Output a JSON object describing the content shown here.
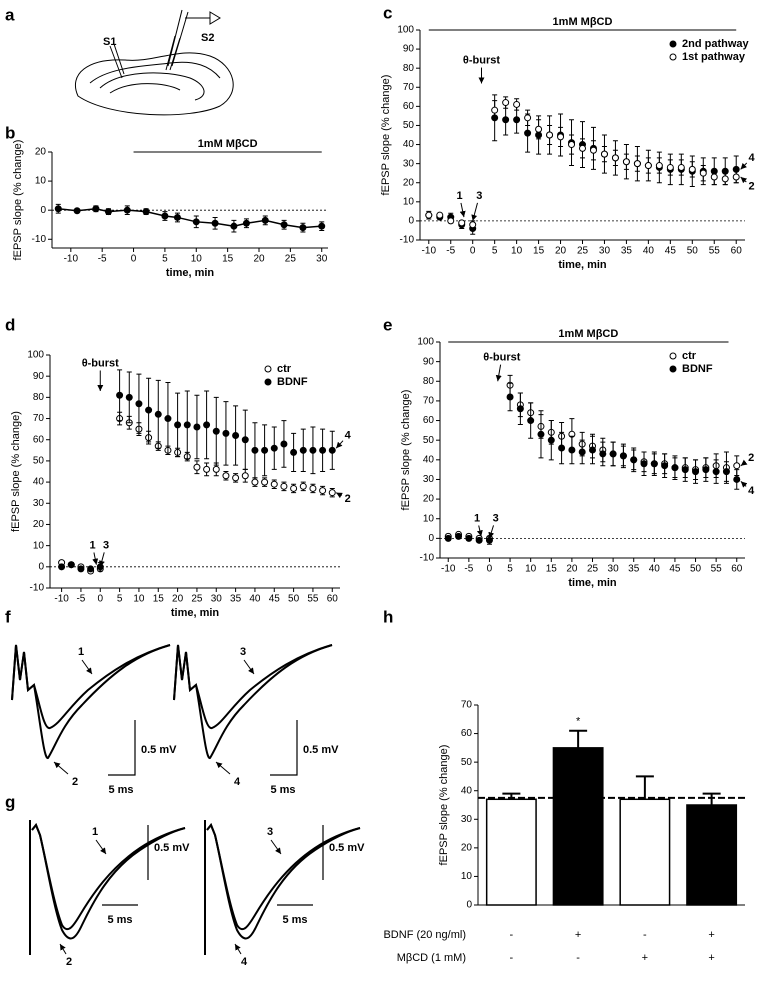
{
  "figure": {
    "panel_labels": [
      "a",
      "b",
      "c",
      "d",
      "e",
      "f",
      "g",
      "h"
    ],
    "panel_a": {
      "labels": [
        "S1",
        "S2"
      ]
    },
    "traces": [
      {
        "labels": [
          "1",
          "2"
        ],
        "scale_y": "0.5 mV",
        "scale_x": "5 ms"
      },
      {
        "labels": [
          "3",
          "4"
        ],
        "scale_y": "0.5 mV",
        "scale_x": "5 ms"
      },
      {
        "labels": [
          "1",
          "2"
        ],
        "scale_y": "0.5 mV",
        "scale_x": "5 ms"
      },
      {
        "labels": [
          "3",
          "4"
        ],
        "scale_y": "0.5 mV",
        "scale_x": "5 ms"
      }
    ]
  },
  "chart_data": [
    {
      "type": "line",
      "x": [
        -12,
        -9,
        -6,
        -4,
        -1,
        2,
        5,
        7,
        10,
        13,
        16,
        18,
        21,
        24,
        27,
        30
      ],
      "series": [
        {
          "color": "#000000",
          "marker": "filled",
          "values": [
            0.5,
            -0.2,
            0.5,
            -0.5,
            0,
            -0.5,
            -2,
            -2.5,
            -4,
            -4.5,
            -5.5,
            -4.5,
            -3.5,
            -5,
            -6,
            -5.5
          ],
          "errors": [
            1.5,
            0.5,
            1,
            1,
            1.5,
            1,
            1.5,
            1.5,
            2,
            2,
            2,
            1.5,
            1.5,
            1.5,
            1.5,
            1.5
          ]
        }
      ],
      "xlim": [
        -13,
        31
      ],
      "xticks": [
        -10,
        -5,
        0,
        5,
        10,
        15,
        20,
        25,
        30
      ],
      "ylim": [
        -13,
        20
      ],
      "yticks": [
        -10,
        0,
        10,
        20
      ],
      "x_label": "time, min",
      "y_label": "fEPSP slope (% change)",
      "reference_line": 0,
      "treatment": {
        "label": "1mM MβCD",
        "xrange": [
          0,
          30
        ]
      }
    },
    {
      "type": "scatter",
      "x": [
        -10,
        -7.5,
        -5,
        -2.5,
        0,
        5,
        7.5,
        10,
        12.5,
        15,
        17.5,
        20,
        22.5,
        25,
        27.5,
        30,
        32.5,
        35,
        37.5,
        40,
        42.5,
        45,
        47.5,
        50,
        52.5,
        55,
        57.5,
        60
      ],
      "series": [
        {
          "name": "2nd pathway",
          "color": "#000000",
          "marker": "filled",
          "values": [
            3,
            2,
            2,
            -2,
            -4,
            54,
            53,
            53,
            46,
            45,
            45,
            45,
            41,
            40,
            38,
            35,
            33,
            31,
            30,
            29,
            28,
            27,
            27,
            26,
            26,
            26,
            26,
            27
          ],
          "errors": [
            2,
            1,
            2,
            2,
            3,
            12,
            8,
            7,
            10,
            10,
            10,
            11,
            12,
            12,
            11,
            10,
            9,
            9,
            9,
            8,
            8,
            8,
            8,
            8,
            7,
            7,
            7,
            7
          ]
        },
        {
          "name": "1st pathway",
          "color": "#000000",
          "marker": "open",
          "values": [
            3,
            3,
            0,
            -1,
            -2,
            58,
            62,
            61,
            54,
            48,
            45,
            44,
            40,
            38,
            37,
            35,
            33,
            31,
            30,
            29,
            29,
            28,
            28,
            27,
            25,
            23,
            22,
            23
          ],
          "errors": [
            1,
            1,
            1,
            1,
            2,
            5,
            3,
            3,
            4,
            5,
            5,
            5,
            5,
            5,
            5,
            4,
            4,
            4,
            4,
            4,
            4,
            4,
            4,
            4,
            4,
            4,
            3,
            3
          ]
        }
      ],
      "xlim": [
        -12,
        62
      ],
      "xticks": [
        -10,
        -5,
        0,
        5,
        10,
        15,
        20,
        25,
        30,
        35,
        40,
        45,
        50,
        55,
        60
      ],
      "ylim": [
        -10,
        100
      ],
      "yticks": [
        -10,
        0,
        10,
        20,
        30,
        40,
        50,
        60,
        70,
        80,
        90,
        100
      ],
      "x_label": "time, min",
      "y_label": "fEPSP slope (% change)",
      "reference_line": 0,
      "legend": "upper right",
      "treatment": {
        "label": "1mM MβCD",
        "xrange": [
          -10,
          60
        ]
      },
      "annotations": [
        {
          "text": "θ-burst",
          "x": 2,
          "y": 84,
          "arrow": [
            2,
            72
          ]
        },
        {
          "text": "1",
          "x": -3,
          "y": 13,
          "arrow": [
            -2,
            2
          ]
        },
        {
          "text": "3",
          "x": 1.5,
          "y": 13,
          "arrow": [
            0,
            0
          ]
        },
        {
          "text": "4",
          "x": 63.5,
          "y": 33,
          "arrow": [
            61,
            27
          ]
        },
        {
          "text": "2",
          "x": 63.5,
          "y": 18,
          "arrow": [
            61,
            23
          ]
        }
      ]
    },
    {
      "type": "scatter",
      "x": [
        -10,
        -7.5,
        -5,
        -2.5,
        0,
        5,
        7.5,
        10,
        12.5,
        15,
        17.5,
        20,
        22.5,
        25,
        27.5,
        30,
        32.5,
        35,
        37.5,
        40,
        42.5,
        45,
        47.5,
        50,
        52.5,
        55,
        57.5,
        60
      ],
      "series": [
        {
          "name": "ctr",
          "color": "#000000",
          "marker": "open",
          "values": [
            2,
            1,
            0,
            -2,
            -1,
            70,
            68,
            65,
            61,
            57,
            55,
            54,
            52,
            47,
            46,
            46,
            43,
            42,
            43,
            40,
            40,
            39,
            38,
            37,
            38,
            37,
            36,
            35
          ],
          "errors": [
            1,
            1,
            1,
            1,
            1,
            3,
            3,
            3,
            3,
            2,
            2,
            2,
            2,
            3,
            3,
            3,
            2,
            2,
            3,
            2,
            2,
            2,
            2,
            2,
            2,
            2,
            2,
            2
          ]
        },
        {
          "name": "BDNF",
          "color": "#000000",
          "marker": "filled",
          "values": [
            0,
            1,
            -1,
            -1,
            0,
            81,
            80,
            77,
            74,
            72,
            70,
            67,
            67,
            66,
            67,
            64,
            63,
            62,
            60,
            55,
            55,
            56,
            58,
            54,
            55,
            55,
            55,
            55
          ],
          "errors": [
            1,
            1,
            1,
            1,
            2,
            12,
            12,
            14,
            15,
            16,
            17,
            15,
            16,
            15,
            16,
            16,
            15,
            14,
            14,
            13,
            12,
            10,
            11,
            9,
            10,
            11,
            10,
            9
          ]
        }
      ],
      "xlim": [
        -13,
        62
      ],
      "xticks": [
        -10,
        -5,
        0,
        5,
        10,
        15,
        20,
        25,
        30,
        35,
        40,
        45,
        50,
        55,
        60
      ],
      "ylim": [
        -10,
        100
      ],
      "yticks": [
        -10,
        0,
        10,
        20,
        30,
        40,
        50,
        60,
        70,
        80,
        90,
        100
      ],
      "x_label": "time, min",
      "y_label": "fEPSP slope (% change)",
      "reference_line": 0,
      "legend": "upper right",
      "annotations": [
        {
          "text": "θ-burst",
          "x": 0,
          "y": 96,
          "arrow": [
            0,
            83
          ]
        },
        {
          "text": "1",
          "x": -2,
          "y": 10,
          "arrow": [
            -1,
            1
          ]
        },
        {
          "text": "3",
          "x": 1.5,
          "y": 10,
          "arrow": [
            0,
            0
          ]
        },
        {
          "text": "4",
          "x": 64,
          "y": 62,
          "arrow": [
            61,
            56
          ]
        },
        {
          "text": "2",
          "x": 64,
          "y": 32,
          "arrow": [
            61,
            35
          ]
        }
      ]
    },
    {
      "type": "scatter",
      "x": [
        -10,
        -7.5,
        -5,
        -2.5,
        0,
        5,
        7.5,
        10,
        12.5,
        15,
        17.5,
        20,
        22.5,
        25,
        27.5,
        30,
        32.5,
        35,
        37.5,
        40,
        42.5,
        45,
        47.5,
        50,
        52.5,
        55,
        57.5,
        60
      ],
      "series": [
        {
          "name": "ctr",
          "color": "#000000",
          "marker": "open",
          "values": [
            1,
            2,
            1,
            0,
            0,
            78,
            68,
            64,
            57,
            54,
            52,
            53,
            48,
            47,
            45,
            43,
            42,
            40,
            39,
            38,
            38,
            36,
            36,
            35,
            36,
            37,
            36,
            37
          ],
          "errors": [
            1,
            1,
            1,
            1,
            1,
            5,
            6,
            5,
            6,
            6,
            7,
            8,
            6,
            6,
            6,
            6,
            5,
            5,
            5,
            5,
            5,
            5,
            5,
            5,
            5,
            6,
            8,
            5
          ]
        },
        {
          "name": "BDNF",
          "color": "#000000",
          "marker": "filled",
          "values": [
            0,
            1,
            0,
            -1,
            -1,
            72,
            66,
            60,
            53,
            50,
            46,
            45,
            44,
            45,
            43,
            43,
            42,
            40,
            38,
            38,
            37,
            36,
            35,
            34,
            35,
            34,
            34,
            30
          ],
          "errors": [
            1,
            1,
            1,
            1,
            2,
            7,
            8,
            9,
            12,
            10,
            8,
            7,
            6,
            7,
            6,
            6,
            6,
            6,
            6,
            6,
            6,
            6,
            6,
            6,
            6,
            6,
            5,
            5
          ]
        }
      ],
      "xlim": [
        -12,
        62
      ],
      "xticks": [
        -10,
        -5,
        0,
        5,
        10,
        15,
        20,
        25,
        30,
        35,
        40,
        45,
        50,
        55,
        60
      ],
      "ylim": [
        -10,
        100
      ],
      "yticks": [
        -10,
        0,
        10,
        20,
        30,
        40,
        50,
        60,
        70,
        80,
        90,
        100
      ],
      "x_label": "time, min",
      "y_label": "fEPSP slope (% change)",
      "reference_line": 0,
      "legend": "upper right",
      "treatment": {
        "label": "1mM MβCD",
        "xrange": [
          -10,
          58
        ]
      },
      "annotations": [
        {
          "text": "θ-burst",
          "x": 3,
          "y": 92,
          "arrow": [
            2,
            80
          ]
        },
        {
          "text": "1",
          "x": -3,
          "y": 10,
          "arrow": [
            -2,
            1
          ]
        },
        {
          "text": "3",
          "x": 1.5,
          "y": 10,
          "arrow": [
            0,
            0
          ]
        },
        {
          "text": "2",
          "x": 63.5,
          "y": 41,
          "arrow": [
            61,
            37
          ]
        },
        {
          "text": "4",
          "x": 63.5,
          "y": 24,
          "arrow": [
            61,
            29
          ]
        }
      ]
    },
    {
      "type": "bar",
      "categories": [
        null,
        null,
        null,
        null
      ],
      "values": [
        37,
        55,
        37,
        35
      ],
      "errors": [
        2,
        6,
        8,
        4
      ],
      "colors": [
        "#ffffff",
        "#000000",
        "#ffffff",
        "#000000"
      ],
      "ylim": [
        0,
        70
      ],
      "yticks": [
        0,
        10,
        20,
        30,
        40,
        50,
        60,
        70
      ],
      "y_label": "fEPSP slope (% change)",
      "reference_line": 37.5,
      "annotations": [
        {
          "text": "*",
          "category": 1
        }
      ],
      "treatments": [
        {
          "label": "BDNF (20 ng/ml)",
          "values": [
            "-",
            "+",
            "-",
            "+"
          ]
        },
        {
          "label": "MβCD (1 mM)",
          "values": [
            "-",
            "-",
            "+",
            "+"
          ]
        }
      ]
    }
  ]
}
